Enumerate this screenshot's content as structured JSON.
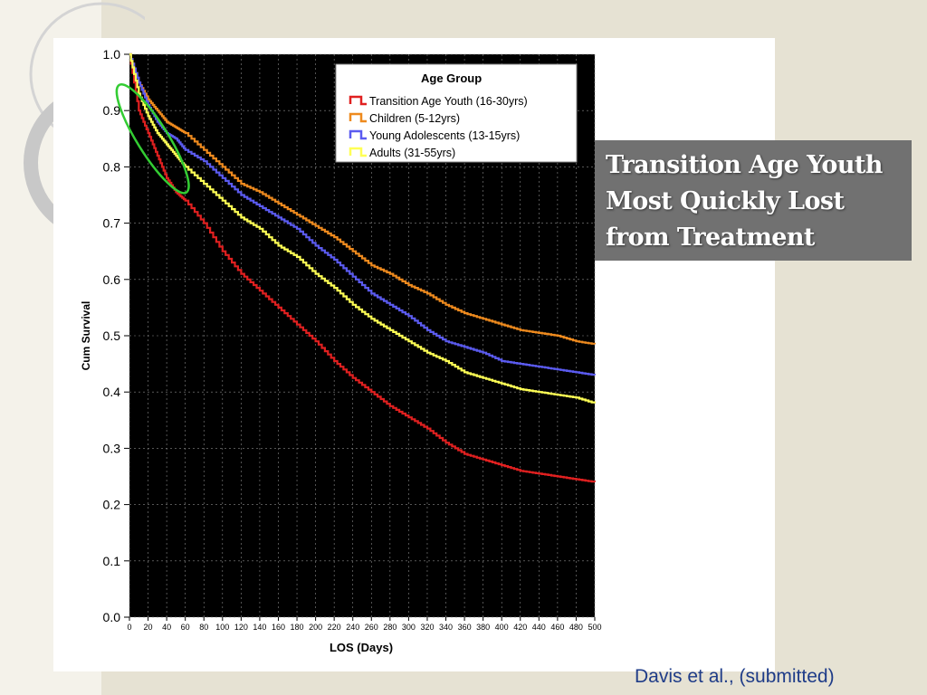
{
  "slide": {
    "callout_title": "Transition Age Youth Most Quickly Lost from Treatment",
    "citation": "Davis et al., (submitted)"
  },
  "colors": {
    "background": "#e6e2d3",
    "plot_area": "#000000",
    "callout": "#717171",
    "highlight_ellipse": "#33cc33",
    "citation_text": "#1f3c88"
  },
  "chart_data": {
    "type": "line",
    "title": "",
    "xlabel": "LOS (Days)",
    "ylabel": "Cum Survival",
    "xlim": [
      0,
      500
    ],
    "ylim": [
      0,
      1.0
    ],
    "x_ticks": [
      0,
      20,
      40,
      60,
      80,
      100,
      120,
      140,
      160,
      180,
      200,
      220,
      240,
      260,
      280,
      300,
      320,
      340,
      360,
      380,
      400,
      420,
      440,
      460,
      480,
      500
    ],
    "y_ticks": [
      "0.0",
      "0.1",
      "0.2",
      "0.3",
      "0.4",
      "0.5",
      "0.6",
      "0.7",
      "0.8",
      "0.9",
      "1.0"
    ],
    "grid": true,
    "legend": {
      "title": "Age Group",
      "position": "top-right",
      "entries": [
        "Transition Age Youth  (16-30yrs)",
        "Children (5-12yrs)",
        "Young Adolescents (13-15yrs)",
        "Adults (31-55yrs)"
      ]
    },
    "series": [
      {
        "name": "Transition Age Youth  (16-30yrs)",
        "color": "#e02020",
        "x": [
          0,
          10,
          20,
          30,
          40,
          50,
          60,
          80,
          100,
          120,
          140,
          160,
          180,
          200,
          220,
          240,
          260,
          280,
          300,
          320,
          340,
          360,
          380,
          400,
          420,
          440,
          460,
          480,
          500
        ],
        "y": [
          1.0,
          0.9,
          0.86,
          0.82,
          0.78,
          0.755,
          0.74,
          0.7,
          0.65,
          0.61,
          0.58,
          0.55,
          0.52,
          0.49,
          0.455,
          0.425,
          0.4,
          0.375,
          0.355,
          0.335,
          0.31,
          0.29,
          0.28,
          0.27,
          0.26,
          0.255,
          0.25,
          0.245,
          0.24
        ]
      },
      {
        "name": "Children (5-12yrs)",
        "color": "#ee8a1e",
        "x": [
          0,
          10,
          20,
          30,
          40,
          50,
          60,
          80,
          100,
          120,
          140,
          160,
          180,
          200,
          220,
          240,
          260,
          280,
          300,
          320,
          340,
          360,
          380,
          400,
          420,
          440,
          460,
          480,
          500
        ],
        "y": [
          1.0,
          0.95,
          0.92,
          0.9,
          0.88,
          0.87,
          0.86,
          0.83,
          0.8,
          0.77,
          0.755,
          0.735,
          0.715,
          0.695,
          0.675,
          0.65,
          0.625,
          0.61,
          0.59,
          0.575,
          0.555,
          0.54,
          0.53,
          0.52,
          0.51,
          0.505,
          0.5,
          0.49,
          0.485
        ]
      },
      {
        "name": "Young Adolescents (13-15yrs)",
        "color": "#5b5bf0",
        "x": [
          0,
          10,
          20,
          30,
          40,
          50,
          60,
          80,
          100,
          120,
          140,
          160,
          180,
          200,
          220,
          240,
          260,
          280,
          300,
          320,
          340,
          360,
          380,
          400,
          420,
          440,
          460,
          480,
          500
        ],
        "y": [
          1.0,
          0.95,
          0.91,
          0.88,
          0.86,
          0.85,
          0.83,
          0.81,
          0.78,
          0.75,
          0.73,
          0.71,
          0.69,
          0.66,
          0.635,
          0.605,
          0.575,
          0.555,
          0.535,
          0.51,
          0.49,
          0.48,
          0.47,
          0.455,
          0.45,
          0.445,
          0.44,
          0.435,
          0.43
        ]
      },
      {
        "name": "Adults (31-55yrs)",
        "color": "#ffff55",
        "x": [
          0,
          10,
          20,
          30,
          40,
          50,
          60,
          80,
          100,
          120,
          140,
          160,
          180,
          200,
          220,
          240,
          260,
          280,
          300,
          320,
          340,
          360,
          380,
          400,
          420,
          440,
          460,
          480,
          500
        ],
        "y": [
          1.0,
          0.93,
          0.89,
          0.86,
          0.84,
          0.82,
          0.8,
          0.77,
          0.74,
          0.71,
          0.69,
          0.66,
          0.64,
          0.61,
          0.585,
          0.555,
          0.53,
          0.51,
          0.49,
          0.47,
          0.455,
          0.435,
          0.425,
          0.415,
          0.405,
          0.4,
          0.395,
          0.39,
          0.38
        ]
      }
    ],
    "annotation": {
      "shape": "ellipse",
      "color": "#33cc33",
      "x_range": [
        0,
        50
      ],
      "y_range": [
        0.76,
        0.94
      ]
    }
  }
}
